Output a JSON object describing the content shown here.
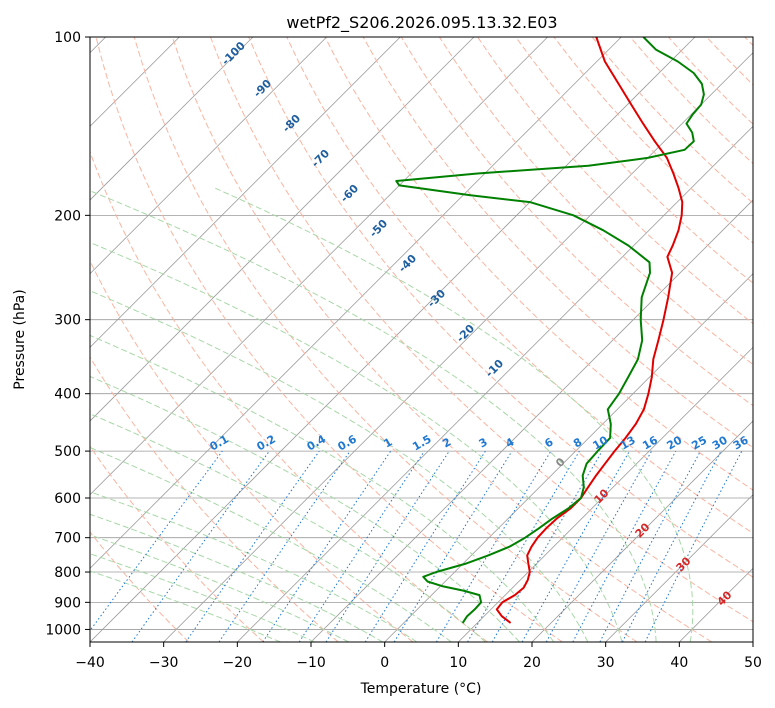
{
  "chart_data": {
    "type": "line",
    "subtype": "skew-T log-P thermodynamic diagram",
    "title": "wetPf2_S206.2026.095.13.32.E03",
    "xlabel": "Temperature (°C)",
    "ylabel": "Pressure (hPa)",
    "xlim": [
      -40,
      50
    ],
    "ylim": [
      1050,
      100
    ],
    "y_scale": "log",
    "grid": true,
    "x_ticks": [
      -40,
      -30,
      -20,
      -10,
      0,
      10,
      20,
      30,
      40,
      50
    ],
    "y_ticks": [
      1000,
      900,
      800,
      700,
      600,
      500,
      400,
      300,
      200,
      100
    ],
    "series": [
      {
        "color": "#e00000",
        "points": [
          [
            975,
            14.5
          ],
          [
            950,
            12.4
          ],
          [
            925,
            10.8
          ],
          [
            900,
            10.6
          ],
          [
            875,
            11.3
          ],
          [
            850,
            11.5
          ],
          [
            825,
            11.0
          ],
          [
            800,
            10.2
          ],
          [
            775,
            8.9
          ],
          [
            750,
            7.6
          ],
          [
            725,
            7.0
          ],
          [
            700,
            6.6
          ],
          [
            675,
            6.5
          ],
          [
            650,
            6.6
          ],
          [
            625,
            7.1
          ],
          [
            600,
            7.1
          ],
          [
            575,
            6.6
          ],
          [
            550,
            6.1
          ],
          [
            525,
            5.7
          ],
          [
            500,
            5.3
          ],
          [
            475,
            5.0
          ],
          [
            450,
            4.5
          ],
          [
            425,
            3.6
          ],
          [
            400,
            2.1
          ],
          [
            375,
            0.3
          ],
          [
            350,
            -1.9
          ],
          [
            325,
            -3.8
          ],
          [
            300,
            -5.9
          ],
          [
            275,
            -8.3
          ],
          [
            250,
            -11.1
          ],
          [
            235,
            -13.9
          ],
          [
            225,
            -14.7
          ],
          [
            212,
            -16.0
          ],
          [
            200,
            -17.6
          ],
          [
            190,
            -19.3
          ],
          [
            180,
            -21.7
          ],
          [
            170,
            -24.4
          ],
          [
            160,
            -27.4
          ],
          [
            150,
            -31.3
          ],
          [
            140,
            -35.3
          ],
          [
            130,
            -39.5
          ],
          [
            120,
            -44.0
          ],
          [
            110,
            -48.9
          ],
          [
            100,
            -53.4
          ]
        ]
      },
      {
        "color": "#008000",
        "points": [
          [
            975,
            8.0
          ],
          [
            950,
            7.7
          ],
          [
            925,
            7.8
          ],
          [
            900,
            7.7
          ],
          [
            875,
            6.5
          ],
          [
            860,
            3.7
          ],
          [
            845,
            0.2
          ],
          [
            830,
            -2.4
          ],
          [
            815,
            -3.6
          ],
          [
            800,
            -2.5
          ],
          [
            775,
            0.3
          ],
          [
            750,
            2.3
          ],
          [
            725,
            4.0
          ],
          [
            700,
            4.9
          ],
          [
            675,
            5.5
          ],
          [
            650,
            6.0
          ],
          [
            625,
            6.8
          ],
          [
            600,
            7.1
          ],
          [
            575,
            6.0
          ],
          [
            550,
            4.3
          ],
          [
            525,
            3.2
          ],
          [
            500,
            3.0
          ],
          [
            475,
            2.9
          ],
          [
            450,
            1.1
          ],
          [
            425,
            -1.3
          ],
          [
            400,
            -1.9
          ],
          [
            375,
            -2.9
          ],
          [
            350,
            -4.0
          ],
          [
            325,
            -6.0
          ],
          [
            300,
            -9.0
          ],
          [
            275,
            -11.9
          ],
          [
            250,
            -14.1
          ],
          [
            240,
            -15.6
          ],
          [
            225,
            -20.7
          ],
          [
            212,
            -26.2
          ],
          [
            200,
            -32.3
          ],
          [
            190,
            -40.0
          ],
          [
            185,
            -49.0
          ],
          [
            178,
            -60.0
          ],
          [
            175,
            -61.0
          ],
          [
            170,
            -51.0
          ],
          [
            165,
            -37.0
          ],
          [
            160,
            -30.0
          ],
          [
            155,
            -26.1
          ],
          [
            150,
            -26.0
          ],
          [
            145,
            -27.4
          ],
          [
            140,
            -29.4
          ],
          [
            135,
            -29.8
          ],
          [
            130,
            -30.0
          ],
          [
            125,
            -31.0
          ],
          [
            120,
            -32.7
          ],
          [
            115,
            -35.3
          ],
          [
            110,
            -39.0
          ],
          [
            105,
            -43.6
          ],
          [
            100,
            -47.0
          ]
        ]
      }
    ],
    "dry_adiabat_labels": [
      "-100",
      "-90",
      "-80",
      "-70",
      "-60",
      "-50",
      "-40",
      "-30",
      "-20",
      "-10",
      "0",
      "10",
      "20",
      "30",
      "40"
    ],
    "mixing_ratio_labels": [
      "0.1",
      "0.2",
      "0.4",
      "0.6",
      "1",
      "1.5",
      "2",
      "3",
      "4",
      "6",
      "8",
      "10",
      "13",
      "16",
      "20",
      "25",
      "30",
      "36"
    ],
    "colors": {
      "temperature": "#e00000",
      "dewpoint": "#008000",
      "dry_adiabat": "#fbb4a0",
      "moist_adiabat": "#a8d8a8",
      "mixing_ratio": "#1f78d1",
      "dry_adiabat_label_cold": "#1f5fa0",
      "dry_adiabat_label_warm": "#d62728",
      "isotherm": "#9b9b9b",
      "surface_curve": "#dcc8a8"
    }
  }
}
